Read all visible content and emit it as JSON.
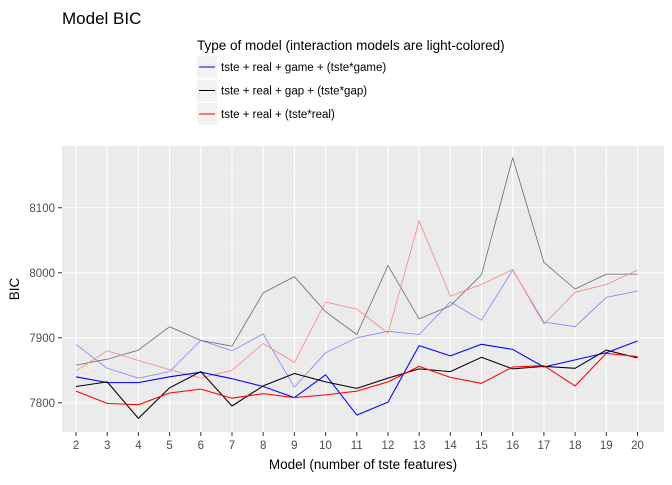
{
  "chart_data": {
    "type": "line",
    "title": "Model BIC",
    "xlabel": "Model (number of tste features)",
    "ylabel": "BIC",
    "legend": {
      "title": "Type of model (interaction models are light-colored)",
      "position": "top"
    },
    "x": [
      2,
      3,
      4,
      5,
      6,
      7,
      8,
      9,
      10,
      11,
      12,
      13,
      14,
      15,
      16,
      17,
      18,
      19,
      20
    ],
    "xlim": [
      1.55,
      20.85
    ],
    "ylim": [
      7755,
      8195
    ],
    "yticks": [
      7800,
      7900,
      8000,
      8100
    ],
    "grid": true,
    "series": [
      {
        "name": "tste + real + game + (tste*game)",
        "group": "game",
        "interaction": false,
        "color": "#0000ff",
        "values": [
          7840,
          7831,
          7831,
          7840,
          7847,
          7837,
          7825,
          7808,
          7843,
          7781,
          7801,
          7888,
          7872,
          7890,
          7882,
          7855,
          7866,
          7877,
          7895
        ]
      },
      {
        "name": "tste + real + game + (tste*game) interaction",
        "group": "game",
        "interaction": true,
        "color": "#8080ff",
        "values": [
          7890,
          7853,
          7838,
          7848,
          7896,
          7880,
          7906,
          7824,
          7877,
          7900,
          7910,
          7905,
          7955,
          7927,
          8004,
          7924,
          7917,
          7962,
          7972
        ]
      },
      {
        "name": "tste + real + gap + (tste*gap)",
        "group": "gap",
        "interaction": false,
        "color": "#000000",
        "values": [
          7825,
          7832,
          7776,
          7823,
          7848,
          7795,
          7826,
          7845,
          7832,
          7822,
          7838,
          7852,
          7848,
          7870,
          7852,
          7856,
          7853,
          7881,
          7869
        ]
      },
      {
        "name": "tste + real + gap + (tste*gap) interaction",
        "group": "gap",
        "interaction": true,
        "color": "#6b6b6b",
        "values": [
          7858,
          7867,
          7881,
          7917,
          7896,
          7887,
          7969,
          7994,
          7940,
          7905,
          8011,
          7929,
          7949,
          7997,
          8177,
          8016,
          7975,
          7998,
          7998
        ]
      },
      {
        "name": "tste + real + (tste*real)",
        "group": "real",
        "interaction": false,
        "color": "#ff0000",
        "values": [
          7818,
          7799,
          7797,
          7815,
          7821,
          7807,
          7814,
          7808,
          7812,
          7818,
          7832,
          7856,
          7839,
          7830,
          7855,
          7857,
          7826,
          7876,
          7871
        ]
      },
      {
        "name": "tste + real + (tste*real) interaction",
        "group": "real",
        "interaction": true,
        "color": "#ff8080",
        "values": [
          7849,
          7880,
          7865,
          7851,
          7838,
          7850,
          7891,
          7862,
          7955,
          7944,
          7907,
          8080,
          7964,
          7982,
          8005,
          7921,
          7970,
          7982,
          8004
        ]
      }
    ],
    "legend_items": [
      {
        "label": "tste + real + game + (tste*game)",
        "color": "#0000ff"
      },
      {
        "label": "tste + real + gap + (tste*gap)",
        "color": "#000000"
      },
      {
        "label": "tste + real + (tste*real)",
        "color": "#ff0000"
      }
    ]
  },
  "colors": {
    "panel_background": "#ebebeb",
    "grid_major": "#ffffff",
    "grid_minor": "#f5f5f5",
    "axis_text": "#4d4d4d",
    "title_text": "#000000"
  }
}
